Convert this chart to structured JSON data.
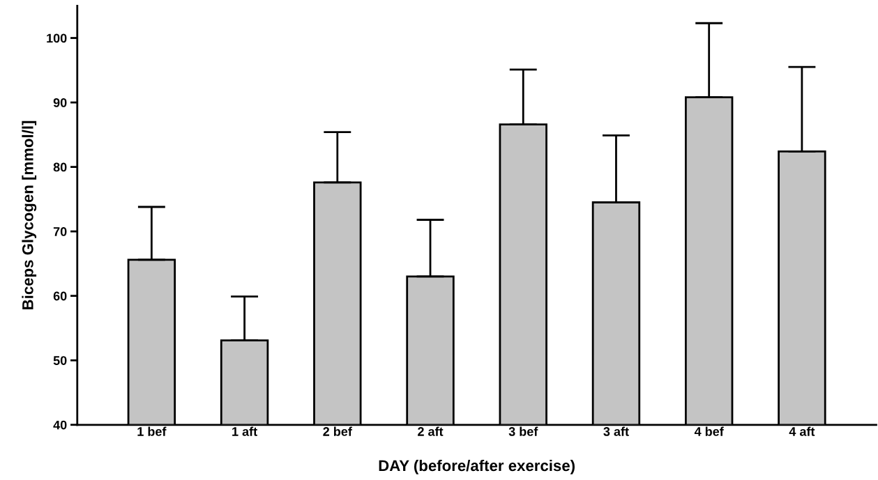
{
  "chart_data": {
    "type": "bar",
    "xlabel": "DAY (before/after exercise)",
    "ylabel": "Biceps Glycogen [mmol/l]",
    "categories": [
      "1 bef",
      "1 aft",
      "2 bef",
      "2 aft",
      "3 bef",
      "3 aft",
      "4 bef",
      "4 aft"
    ],
    "values": [
      65.6,
      53.1,
      77.6,
      63.0,
      86.6,
      74.5,
      90.8,
      82.4
    ],
    "errors": [
      [
        65.6,
        73.8
      ],
      [
        53.1,
        59.9
      ],
      [
        77.6,
        85.4
      ],
      [
        63.0,
        71.8
      ],
      [
        86.6,
        95.1
      ],
      [
        74.5,
        84.9
      ],
      [
        90.8,
        102.3
      ],
      [
        82.4,
        95.5
      ]
    ],
    "color": "#c4c4c4",
    "ylim": [
      40,
      105
    ],
    "yticks": [
      40,
      50,
      60,
      70,
      80,
      90,
      100
    ],
    "grid": false,
    "legend": false
  }
}
